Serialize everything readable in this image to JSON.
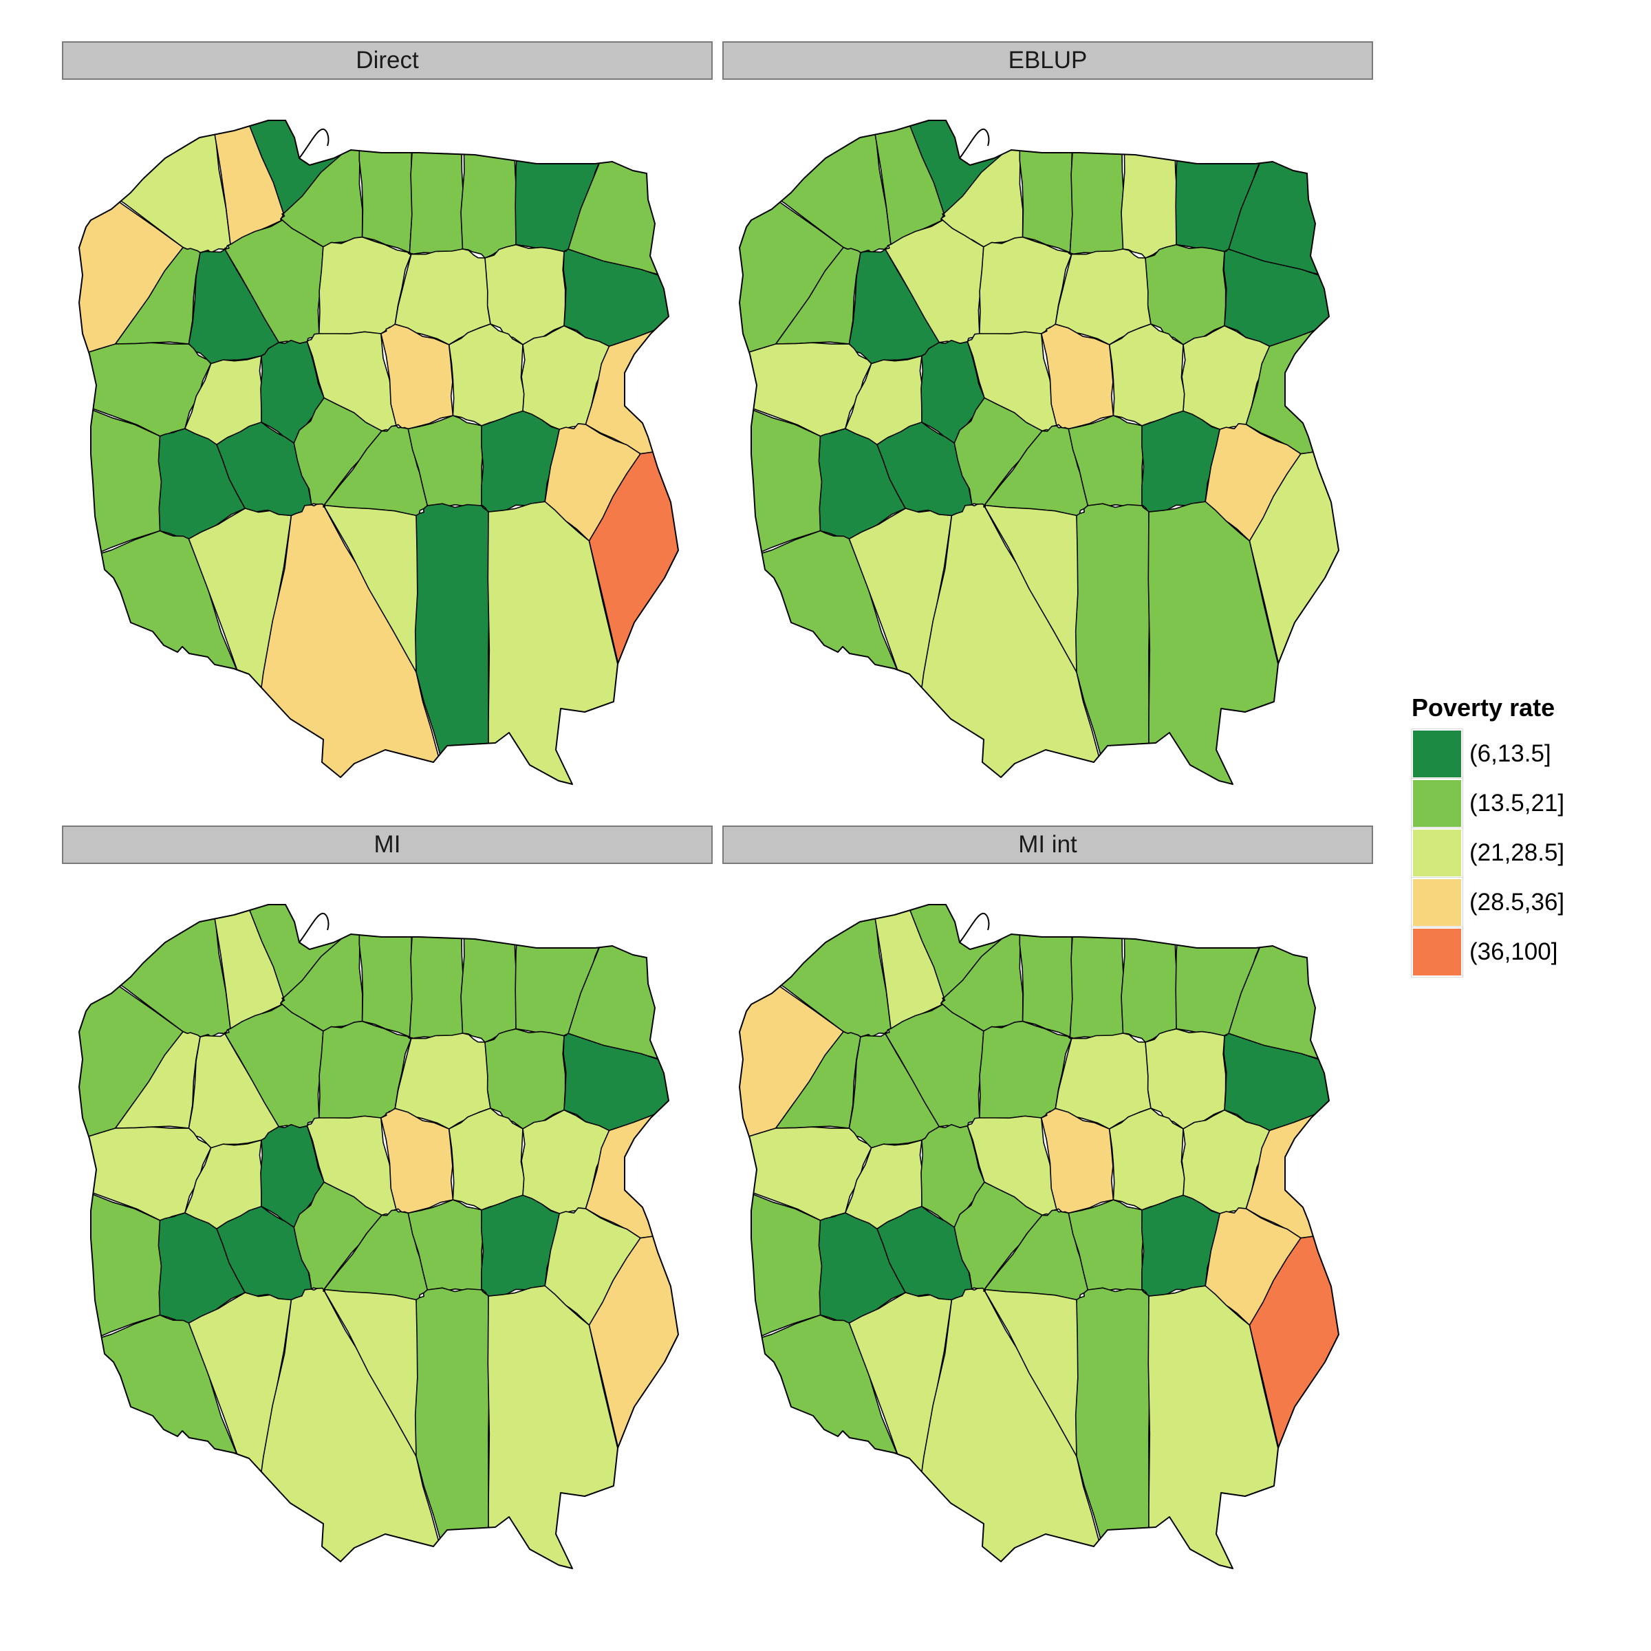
{
  "legend": {
    "title": "Poverty rate",
    "classes": [
      {
        "label": "(6,13.5]",
        "color": "#1d8a44"
      },
      {
        "label": "(13.5,21]",
        "color": "#7ec54e"
      },
      {
        "label": "(21,28.5]",
        "color": "#d1ea7b"
      },
      {
        "label": "(28.5,36]",
        "color": "#f8d67e"
      },
      {
        "label": "(36,100]",
        "color": "#f57a49"
      }
    ]
  },
  "panels": [
    {
      "title": "Direct",
      "key": "direct"
    },
    {
      "title": "EBLUP",
      "key": "eblup"
    },
    {
      "title": "MI",
      "key": "mi"
    },
    {
      "title": "MI int",
      "key": "mi_int"
    }
  ],
  "regions": [
    {
      "id": "r01",
      "direct": 2,
      "eblup": 1,
      "mi": 1,
      "mi_int": 1
    },
    {
      "id": "r02",
      "direct": 3,
      "eblup": 1,
      "mi": 2,
      "mi_int": 2
    },
    {
      "id": "r03",
      "direct": 0,
      "eblup": 0,
      "mi": 1,
      "mi_int": 1
    },
    {
      "id": "r04",
      "direct": 1,
      "eblup": 2,
      "mi": 1,
      "mi_int": 1
    },
    {
      "id": "r05",
      "direct": 1,
      "eblup": 1,
      "mi": 1,
      "mi_int": 1
    },
    {
      "id": "r06",
      "direct": 1,
      "eblup": 1,
      "mi": 1,
      "mi_int": 1
    },
    {
      "id": "r07",
      "direct": 1,
      "eblup": 2,
      "mi": 1,
      "mi_int": 1
    },
    {
      "id": "r08",
      "direct": 0,
      "eblup": 0,
      "mi": 1,
      "mi_int": 1
    },
    {
      "id": "r09",
      "direct": 1,
      "eblup": 0,
      "mi": 1,
      "mi_int": 1
    },
    {
      "id": "r10",
      "direct": 3,
      "eblup": 1,
      "mi": 1,
      "mi_int": 3
    },
    {
      "id": "r11",
      "direct": 1,
      "eblup": 1,
      "mi": 2,
      "mi_int": 1
    },
    {
      "id": "r12",
      "direct": 0,
      "eblup": 0,
      "mi": 2,
      "mi_int": 1
    },
    {
      "id": "r13",
      "direct": 1,
      "eblup": 2,
      "mi": 1,
      "mi_int": 1
    },
    {
      "id": "r14",
      "direct": 2,
      "eblup": 2,
      "mi": 1,
      "mi_int": 1
    },
    {
      "id": "r15",
      "direct": 2,
      "eblup": 2,
      "mi": 2,
      "mi_int": 2
    },
    {
      "id": "r16",
      "direct": 2,
      "eblup": 1,
      "mi": 1,
      "mi_int": 2
    },
    {
      "id": "r17",
      "direct": 0,
      "eblup": 0,
      "mi": 0,
      "mi_int": 0
    },
    {
      "id": "r18",
      "direct": 1,
      "eblup": 2,
      "mi": 2,
      "mi_int": 2
    },
    {
      "id": "r19",
      "direct": 2,
      "eblup": 2,
      "mi": 2,
      "mi_int": 2
    },
    {
      "id": "r20",
      "direct": 0,
      "eblup": 0,
      "mi": 0,
      "mi_int": 1
    },
    {
      "id": "r21",
      "direct": 2,
      "eblup": 2,
      "mi": 2,
      "mi_int": 2
    },
    {
      "id": "r22",
      "direct": 3,
      "eblup": 3,
      "mi": 3,
      "mi_int": 3
    },
    {
      "id": "r23",
      "direct": 2,
      "eblup": 2,
      "mi": 2,
      "mi_int": 2
    },
    {
      "id": "r24",
      "direct": 2,
      "eblup": 2,
      "mi": 2,
      "mi_int": 2
    },
    {
      "id": "r25",
      "direct": 3,
      "eblup": 1,
      "mi": 3,
      "mi_int": 3
    },
    {
      "id": "r26",
      "direct": 1,
      "eblup": 1,
      "mi": 1,
      "mi_int": 1
    },
    {
      "id": "r27",
      "direct": 0,
      "eblup": 0,
      "mi": 0,
      "mi_int": 0
    },
    {
      "id": "r28",
      "direct": 0,
      "eblup": 0,
      "mi": 0,
      "mi_int": 0
    },
    {
      "id": "r29",
      "direct": 1,
      "eblup": 1,
      "mi": 1,
      "mi_int": 1
    },
    {
      "id": "r30",
      "direct": 1,
      "eblup": 1,
      "mi": 1,
      "mi_int": 1
    },
    {
      "id": "r31",
      "direct": 1,
      "eblup": 1,
      "mi": 1,
      "mi_int": 1
    },
    {
      "id": "r32",
      "direct": 0,
      "eblup": 0,
      "mi": 0,
      "mi_int": 0
    },
    {
      "id": "r33",
      "direct": 3,
      "eblup": 3,
      "mi": 2,
      "mi_int": 3
    },
    {
      "id": "r34",
      "direct": 4,
      "eblup": 2,
      "mi": 3,
      "mi_int": 4
    },
    {
      "id": "r35",
      "direct": 1,
      "eblup": 1,
      "mi": 1,
      "mi_int": 1
    },
    {
      "id": "r36",
      "direct": 2,
      "eblup": 2,
      "mi": 2,
      "mi_int": 2
    },
    {
      "id": "r37",
      "direct": 3,
      "eblup": 2,
      "mi": 2,
      "mi_int": 2
    },
    {
      "id": "r38",
      "direct": 2,
      "eblup": 2,
      "mi": 2,
      "mi_int": 2
    },
    {
      "id": "r39",
      "direct": 0,
      "eblup": 1,
      "mi": 1,
      "mi_int": 1
    },
    {
      "id": "r40",
      "direct": 2,
      "eblup": 1,
      "mi": 2,
      "mi_int": 2
    }
  ]
}
